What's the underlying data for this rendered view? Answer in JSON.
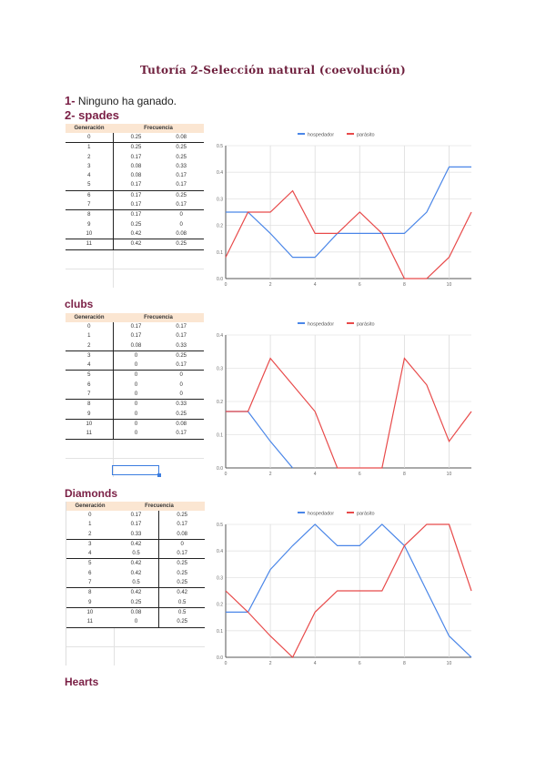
{
  "document": {
    "title": "Tutoría 2-Selección natural (coevolución)",
    "answer1_num": "1-",
    "answer1_text": " Ninguno ha ganado.",
    "answer2_title": "2- spades"
  },
  "sections": {
    "clubs_title": "clubs",
    "diamonds_title": "Diamonds",
    "hearts_title": "Hearts"
  },
  "table_headers": {
    "generation": "Generación",
    "frequency": "Frecuencia"
  },
  "legend": {
    "host": "hospedador",
    "parasite": "parásito",
    "host_color": "#4a86e8",
    "parasite_color": "#e84a4a"
  },
  "tables": {
    "spades": [
      [
        "0",
        "0.25",
        "0.08"
      ],
      [
        "1",
        "0.25",
        "0.25"
      ],
      [
        "2",
        "0.17",
        "0.25"
      ],
      [
        "3",
        "0.08",
        "0.33"
      ],
      [
        "4",
        "0.08",
        "0.17"
      ],
      [
        "5",
        "0.17",
        "0.17"
      ],
      [
        "6",
        "0.17",
        "0.25"
      ],
      [
        "7",
        "0.17",
        "0.17"
      ],
      [
        "8",
        "0.17",
        "0"
      ],
      [
        "9",
        "0.25",
        "0"
      ],
      [
        "10",
        "0.42",
        "0.08"
      ],
      [
        "11",
        "0.42",
        "0.25"
      ]
    ],
    "clubs": [
      [
        "0",
        "0.17",
        "0.17"
      ],
      [
        "1",
        "0.17",
        "0.17"
      ],
      [
        "2",
        "0.08",
        "0.33"
      ],
      [
        "3",
        "0",
        "0.25"
      ],
      [
        "4",
        "0",
        "0.17"
      ],
      [
        "5",
        "0",
        "0"
      ],
      [
        "6",
        "0",
        "0"
      ],
      [
        "7",
        "0",
        "0"
      ],
      [
        "8",
        "0",
        "0.33"
      ],
      [
        "9",
        "0",
        "0.25"
      ],
      [
        "10",
        "0",
        "0.08"
      ],
      [
        "11",
        "0",
        "0.17"
      ]
    ],
    "diamonds": [
      [
        "0",
        "0.17",
        "0.25"
      ],
      [
        "1",
        "0.17",
        "0.17"
      ],
      [
        "2",
        "0.33",
        "0.08"
      ],
      [
        "3",
        "0.42",
        "0"
      ],
      [
        "4",
        "0.5",
        "0.17"
      ],
      [
        "5",
        "0.42",
        "0.25"
      ],
      [
        "6",
        "0.42",
        "0.25"
      ],
      [
        "7",
        "0.5",
        "0.25"
      ],
      [
        "8",
        "0.42",
        "0.42"
      ],
      [
        "9",
        "0.25",
        "0.5"
      ],
      [
        "10",
        "0.08",
        "0.5"
      ],
      [
        "11",
        "0",
        "0.25"
      ]
    ]
  },
  "chart_data": [
    {
      "type": "line",
      "title": "spades",
      "x": [
        0,
        1,
        2,
        3,
        4,
        5,
        6,
        7,
        8,
        9,
        10,
        11
      ],
      "series": [
        {
          "name": "hospedador",
          "values": [
            0.25,
            0.25,
            0.17,
            0.08,
            0.08,
            0.17,
            0.17,
            0.17,
            0.17,
            0.25,
            0.42,
            0.42
          ]
        },
        {
          "name": "parásito",
          "values": [
            0.08,
            0.25,
            0.25,
            0.33,
            0.17,
            0.17,
            0.25,
            0.17,
            0,
            0,
            0.08,
            0.25
          ]
        }
      ],
      "xticks": [
        "0",
        "2",
        "4",
        "6",
        "8",
        "10"
      ],
      "yticks": [
        "0.0",
        "0.1",
        "0.2",
        "0.3",
        "0.4",
        "0.5"
      ],
      "ylim": [
        0,
        0.5
      ],
      "legend_position": "top",
      "grid": true
    },
    {
      "type": "line",
      "title": "clubs",
      "x": [
        0,
        1,
        2,
        3,
        4,
        5,
        6,
        7,
        8,
        9,
        10,
        11
      ],
      "series": [
        {
          "name": "hospedador",
          "values": [
            0.17,
            0.17,
            0.08,
            0,
            0,
            0,
            0,
            0,
            0,
            0,
            0,
            0
          ]
        },
        {
          "name": "parásito",
          "values": [
            0.17,
            0.17,
            0.33,
            0.25,
            0.17,
            0,
            0,
            0,
            0.33,
            0.25,
            0.08,
            0.17
          ]
        }
      ],
      "xticks": [
        "0",
        "2",
        "4",
        "6",
        "8",
        "10"
      ],
      "yticks": [
        "0.0",
        "0.1",
        "0.2",
        "0.3",
        "0.4"
      ],
      "ylim": [
        0,
        0.4
      ],
      "legend_position": "top",
      "grid": true
    },
    {
      "type": "line",
      "title": "Diamonds",
      "x": [
        0,
        1,
        2,
        3,
        4,
        5,
        6,
        7,
        8,
        9,
        10,
        11
      ],
      "series": [
        {
          "name": "hospedador",
          "values": [
            0.17,
            0.17,
            0.33,
            0.42,
            0.5,
            0.42,
            0.42,
            0.5,
            0.42,
            0.25,
            0.08,
            0
          ]
        },
        {
          "name": "parásito",
          "values": [
            0.25,
            0.17,
            0.08,
            0,
            0.17,
            0.25,
            0.25,
            0.25,
            0.42,
            0.5,
            0.5,
            0.25
          ]
        }
      ],
      "xticks": [
        "0",
        "2",
        "4",
        "6",
        "8",
        "10"
      ],
      "yticks": [
        "0.0",
        "0.1",
        "0.2",
        "0.3",
        "0.4",
        "0.5"
      ],
      "ylim": [
        0,
        0.5
      ],
      "legend_position": "top",
      "grid": true
    }
  ]
}
